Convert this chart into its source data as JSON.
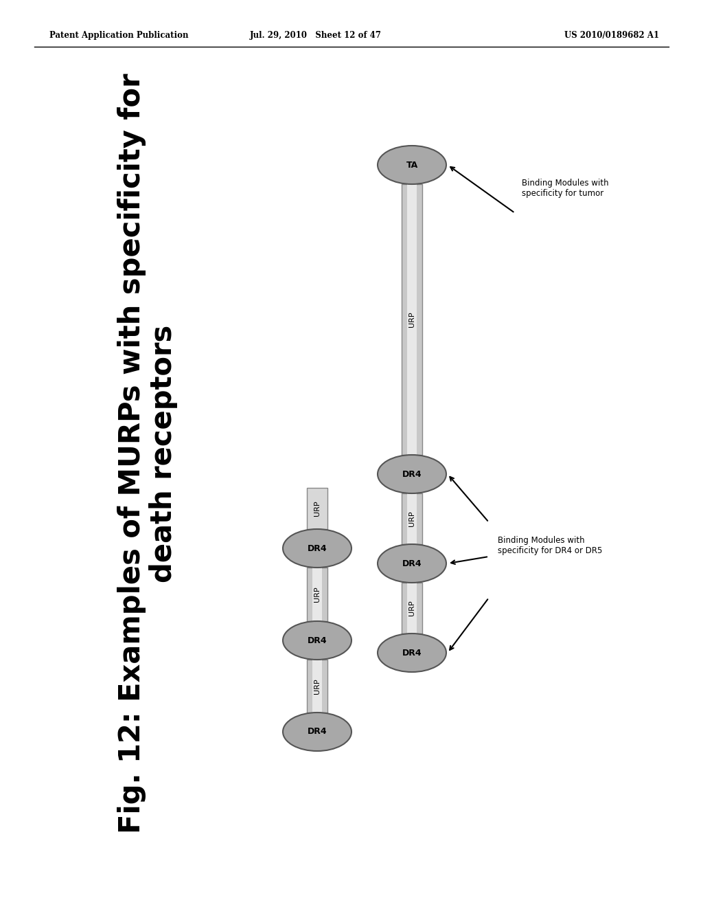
{
  "bg_color": "#ffffff",
  "header_left": "Patent Application Publication",
  "header_mid": "Jul. 29, 2010   Sheet 12 of 47",
  "header_right": "US 2010/0189682 A1",
  "fig_title": "Fig. 12: Examples of MURPs with specificity for\ndeath receptors",
  "bar_outer_color": "#c8c8c8",
  "bar_inner_color": "#e8e8e8",
  "bar_edge_color": "#888888",
  "circle_fill": "#a8a8a8",
  "circle_edge": "#555555",
  "small_box_fill": "#d8d8d8",
  "small_box_edge": "#888888",
  "label_DR4": "Binding Modules with\nspecificity for DR4 or DR5",
  "label_TA": "Binding Modules with\nspecificity for tumor"
}
